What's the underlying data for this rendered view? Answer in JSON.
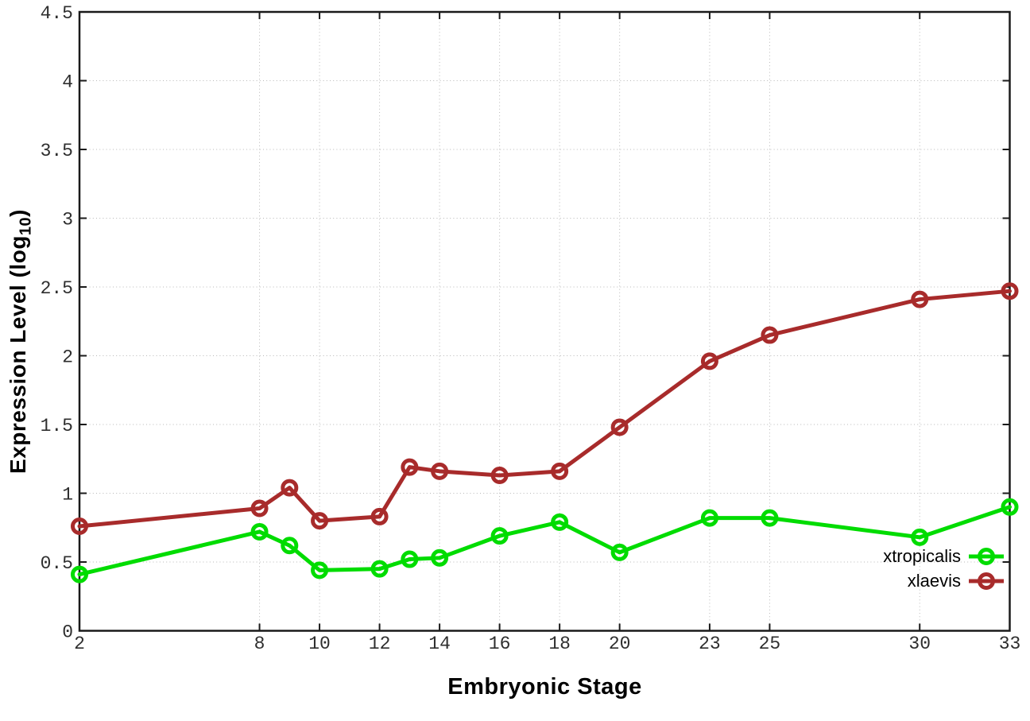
{
  "page": {
    "background": "#ffffff"
  },
  "chart_data": {
    "type": "line",
    "title": "",
    "xlabel": "Embryonic Stage",
    "ylabel": "Expression Level (log10)",
    "ylabel_rich": {
      "prefix": "Expression Level (log",
      "sub": "10",
      "suffix": ")"
    },
    "x": [
      2,
      8,
      9,
      10,
      12,
      13,
      14,
      16,
      18,
      20,
      23,
      25,
      30,
      33
    ],
    "series": [
      {
        "name": "xtropicalis",
        "color": "#00dc00",
        "marker": "open-circle",
        "values": [
          0.41,
          0.72,
          0.62,
          0.44,
          0.45,
          0.52,
          0.53,
          0.69,
          0.79,
          0.57,
          0.82,
          0.82,
          0.68,
          0.9
        ]
      },
      {
        "name": "xlaevis",
        "color": "#a82b2b",
        "marker": "open-circle",
        "values": [
          0.76,
          0.89,
          1.04,
          0.8,
          0.83,
          1.19,
          1.16,
          1.13,
          1.16,
          1.48,
          1.96,
          2.15,
          2.41,
          2.47
        ]
      }
    ],
    "xlim": [
      2,
      33
    ],
    "ylim": [
      0,
      4.5
    ],
    "xticks": {
      "values": [
        2,
        8,
        10,
        12,
        14,
        16,
        18,
        20,
        23,
        25,
        30,
        33
      ],
      "labels": [
        "2",
        "8",
        "10",
        "12",
        "14",
        "16",
        "18",
        "20",
        "23",
        "25",
        "30",
        "33"
      ]
    },
    "yticks": {
      "values": [
        0,
        0.5,
        1,
        1.5,
        2,
        2.5,
        3,
        3.5,
        4,
        4.5
      ],
      "labels": [
        "0",
        "0.5",
        "1",
        "1.5",
        "2",
        "2.5",
        "3",
        "3.5",
        "4",
        "4.5"
      ]
    },
    "grid": "dotted",
    "legend_position": "inside-bottom-right",
    "axis_colors": {
      "grid": "#b8b8b8",
      "border": "#1a1a1a",
      "tick_text": "#2e2e2e"
    }
  }
}
